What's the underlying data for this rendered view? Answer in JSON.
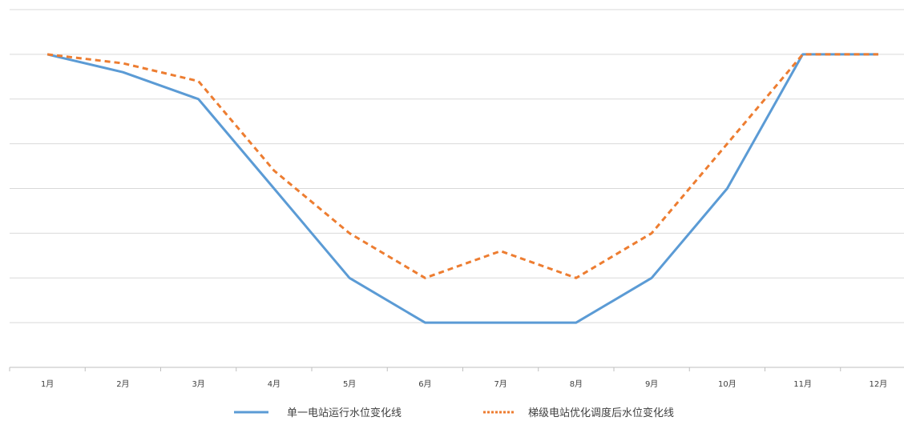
{
  "chart_data": {
    "type": "line",
    "title": "",
    "xlabel": "",
    "ylabel": "",
    "categories": [
      "1月",
      "2月",
      "3月",
      "4月",
      "5月",
      "6月",
      "7月",
      "8月",
      "9月",
      "10月",
      "11月",
      "12月"
    ],
    "ylim": [
      0,
      8
    ],
    "y_ticks_labeled": false,
    "grid": "horizontal",
    "legend_position": "bottom",
    "series": [
      {
        "name": "单一电站运行水位变化线",
        "values": [
          7,
          6.6,
          6,
          4,
          2,
          1,
          1,
          1,
          2,
          4,
          7,
          7
        ],
        "color": "#5b9bd5",
        "line_style": "solid"
      },
      {
        "name": "梯级电站优化调度后水位变化线",
        "values": [
          7,
          6.8,
          6.4,
          4.4,
          3,
          2,
          2.6,
          2,
          3,
          5,
          7,
          7
        ],
        "color": "#ed7d31",
        "line_style": "dashed"
      }
    ]
  }
}
